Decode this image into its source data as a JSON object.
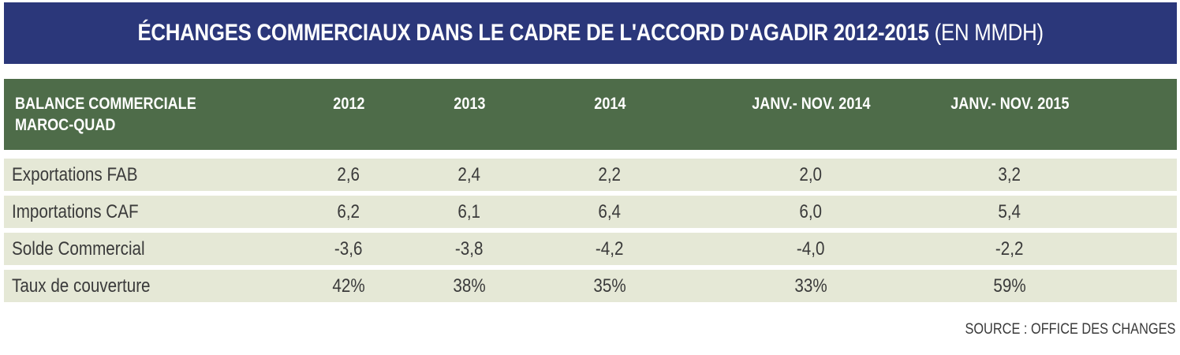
{
  "title": {
    "main": "ÉCHANGES COMMERCIAUX DANS LE CADRE DE L'ACCORD D'AGADIR 2012-2015",
    "unit": "(EN MMDH)"
  },
  "colors": {
    "title_bg": "#2b377a",
    "header_bg": "#4e6c49",
    "row_bg": "#e5e8d6"
  },
  "chart_data": {
    "type": "table",
    "title": "ÉCHANGES COMMERCIAUX DANS LE CADRE DE L'ACCORD D'AGADIR 2012-2015 (EN MMDH)",
    "header": {
      "label_line1": "BALANCE COMMERCIALE",
      "label_line2": "MAROC-QUAD",
      "columns": [
        "2012",
        "2013",
        "2014",
        "JANV.- NOV. 2014",
        "JANV.- NOV. 2015"
      ]
    },
    "rows": [
      {
        "label": "Exportations  FAB",
        "values": [
          "2,6",
          "2,4",
          "2,2",
          "2,0",
          "3,2"
        ]
      },
      {
        "label": "Importations  CAF",
        "values": [
          "6,2",
          "6,1",
          "6,4",
          "6,0",
          "5,4"
        ]
      },
      {
        "label": "Solde Commercial",
        "values": [
          "-3,6",
          "-3,8",
          "-4,2",
          "-4,0",
          "-2,2"
        ]
      },
      {
        "label": "Taux de couverture",
        "values": [
          "42%",
          "38%",
          "35%",
          "33%",
          "59%"
        ]
      }
    ],
    "source": "SOURCE : OFFICE DES CHANGES"
  }
}
